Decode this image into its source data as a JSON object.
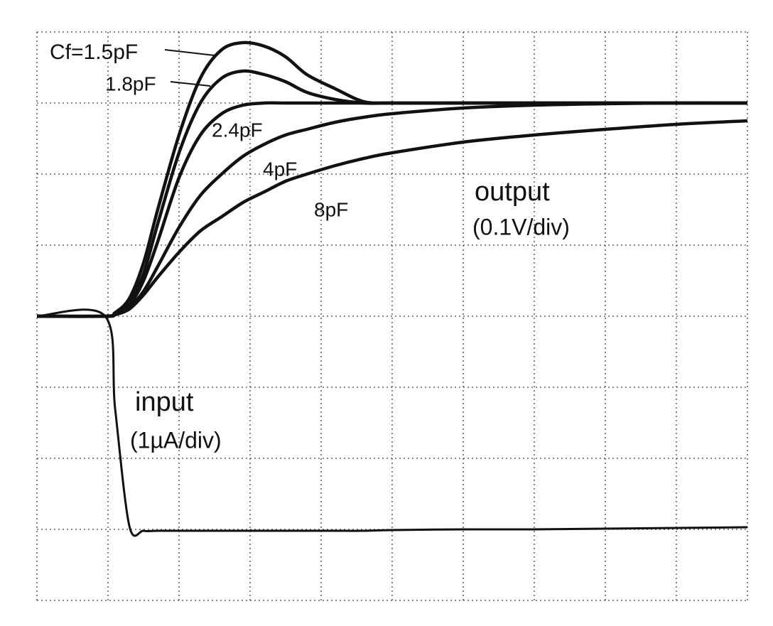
{
  "chart_data": {
    "type": "line",
    "x": [
      0,
      0.96,
      1.1,
      1.3,
      1.5,
      1.7,
      2.0,
      2.3,
      2.6,
      2.9,
      3.2,
      3.5,
      3.8,
      4.2,
      4.6,
      5,
      6,
      7,
      8,
      9,
      10
    ],
    "xlim": [
      0,
      10
    ],
    "ylim": [
      0,
      8
    ],
    "xticks": [
      0,
      1,
      2,
      3,
      4,
      5,
      6,
      7,
      8,
      9,
      10
    ],
    "yticks": [
      0,
      1,
      2,
      3,
      4,
      5,
      6,
      7,
      8
    ],
    "grid": true,
    "series": [
      {
        "name": "Cf=1.5pF",
        "color": "#111111",
        "values": [
          4,
          4,
          4.05,
          4.25,
          4.75,
          5.5,
          6.55,
          7.35,
          7.75,
          7.85,
          7.8,
          7.65,
          7.4,
          7.2,
          7.02,
          7,
          7,
          7,
          7,
          7,
          7
        ]
      },
      {
        "name": "1.8pF",
        "color": "#111111",
        "values": [
          4,
          4,
          4.03,
          4.2,
          4.6,
          5.3,
          6.3,
          7.0,
          7.35,
          7.45,
          7.4,
          7.3,
          7.15,
          7.05,
          7.0,
          7,
          7,
          7,
          7,
          7,
          7
        ]
      },
      {
        "name": "2.4pF",
        "color": "#111111",
        "values": [
          4,
          4,
          4.02,
          4.15,
          4.5,
          5.05,
          5.95,
          6.55,
          6.85,
          6.97,
          7,
          7,
          7,
          7,
          7,
          7,
          7,
          7,
          7,
          7,
          7
        ]
      },
      {
        "name": "4pF",
        "color": "#111111",
        "values": [
          4,
          4,
          4.02,
          4.12,
          4.35,
          4.7,
          5.25,
          5.7,
          6.0,
          6.25,
          6.42,
          6.55,
          6.63,
          6.73,
          6.8,
          6.85,
          6.93,
          6.97,
          6.99,
          7,
          7
        ]
      },
      {
        "name": "8pF",
        "color": "#111111",
        "values": [
          4,
          4,
          4.02,
          4.1,
          4.3,
          4.55,
          4.9,
          5.2,
          5.4,
          5.6,
          5.75,
          5.9,
          6.0,
          6.12,
          6.22,
          6.3,
          6.45,
          6.55,
          6.63,
          6.7,
          6.75
        ]
      },
      {
        "name": "input",
        "color": "#111111",
        "values": [
          4,
          4,
          2.7,
          1.05,
          0.98,
          0.98,
          0.98,
          0.98,
          0.98,
          0.98,
          0.98,
          0.98,
          0.98,
          0.98,
          0.98,
          0.99,
          1.0,
          1.0,
          1.01,
          1.02,
          1.03
        ]
      }
    ],
    "annotations": [
      "output",
      "(0.1V/div)",
      "(1µA/div)"
    ]
  }
}
